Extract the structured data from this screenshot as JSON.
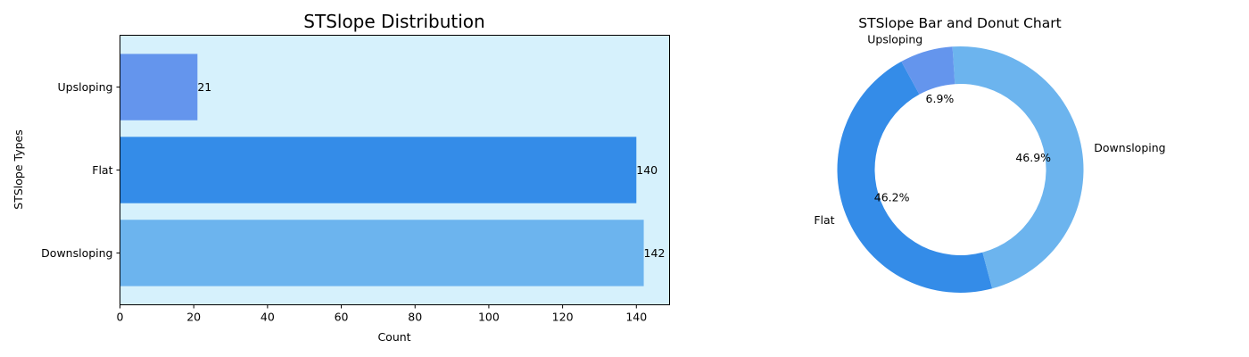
{
  "chart_data": [
    {
      "type": "bar",
      "orientation": "horizontal",
      "title": "STSlope Distribution",
      "xlabel": "Count",
      "ylabel": "STSlope Types",
      "categories": [
        "Upsloping",
        "Flat",
        "Downsloping"
      ],
      "values": [
        21,
        140,
        142
      ],
      "data_labels": [
        "21",
        "140",
        "142"
      ],
      "colors": [
        "#6495ED",
        "#348CE8",
        "#6CB4EE"
      ],
      "background": "#D6F1FC",
      "xlim": [
        0,
        149
      ],
      "xticks": [
        0,
        20,
        40,
        60,
        80,
        100,
        120,
        140
      ],
      "xtick_labels": [
        "0",
        "20",
        "40",
        "60",
        "80",
        "100",
        "120",
        "140"
      ],
      "grid": false,
      "legend": "none"
    },
    {
      "type": "pie",
      "style": "donut",
      "title": "STSlope Bar and Donut Chart",
      "slices": [
        {
          "label": "Flat",
          "value": 140,
          "percent_label": "46.2%",
          "color": "#348CE8"
        },
        {
          "label": "Downsloping",
          "value": 142,
          "percent_label": "46.9%",
          "color": "#6CB4EE"
        },
        {
          "label": "Upsloping",
          "value": 21,
          "percent_label": "6.9%",
          "color": "#6495ED"
        }
      ],
      "legend": "none"
    }
  ]
}
